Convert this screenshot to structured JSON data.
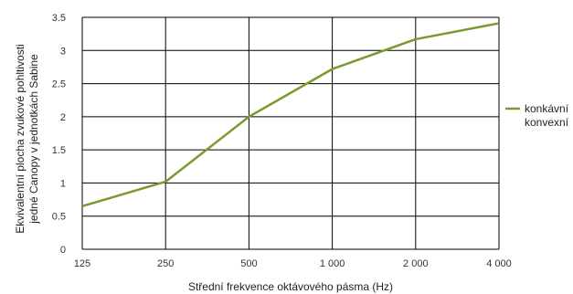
{
  "chart_data": {
    "type": "line",
    "title": "",
    "xlabel": "Střední frekvence oktávového pásma (Hz)",
    "ylabel": [
      "Ekvivalentní plocha zvukové pohltivosti",
      "jedné Canopy v jednotkách Sabine"
    ],
    "categories": [
      "125",
      "250",
      "500",
      "1 000",
      "2 000",
      "4 000"
    ],
    "ylim": [
      0,
      3.5
    ],
    "yticks": [
      "0",
      "0.5",
      "1",
      "1.5",
      "2",
      "2.5",
      "3",
      "3.5"
    ],
    "grid": true,
    "legend_position": "right",
    "series": [
      {
        "name": "konkávní",
        "values": [
          0.65,
          1.02,
          2.0,
          2.72,
          3.17,
          3.41
        ],
        "color": "#7a9a2e"
      }
    ],
    "legend_extra": [
      "konvexní"
    ]
  }
}
